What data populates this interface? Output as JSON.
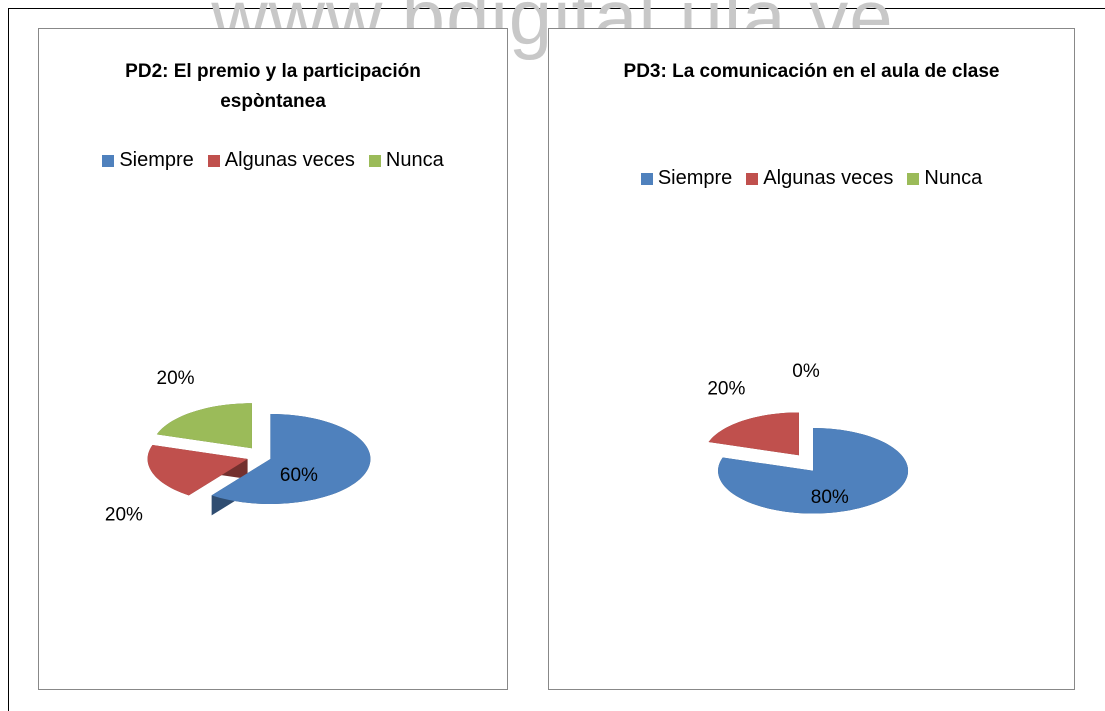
{
  "watermark": "www.bdigital.ula.ve",
  "chart_data": [
    {
      "type": "pie",
      "title": "PD2: El premio y la participación  espòntanea",
      "categories": [
        "Siempre",
        "Algunas veces",
        "Nunca"
      ],
      "values": [
        60,
        20,
        20
      ],
      "value_labels": [
        "60%",
        "20%",
        "20%"
      ],
      "colors": [
        "#4f81bd",
        "#c0504d",
        "#9bbb59"
      ],
      "legend": "top",
      "exploded": true
    },
    {
      "type": "pie",
      "title": "PD3: La comunicación en el aula de clase",
      "categories": [
        "Siempre",
        "Algunas veces",
        "Nunca"
      ],
      "values": [
        80,
        20,
        0
      ],
      "value_labels": [
        "80%",
        "20%",
        "0%"
      ],
      "colors": [
        "#4f81bd",
        "#c0504d",
        "#9bbb59"
      ],
      "legend": "top",
      "exploded": true
    }
  ]
}
